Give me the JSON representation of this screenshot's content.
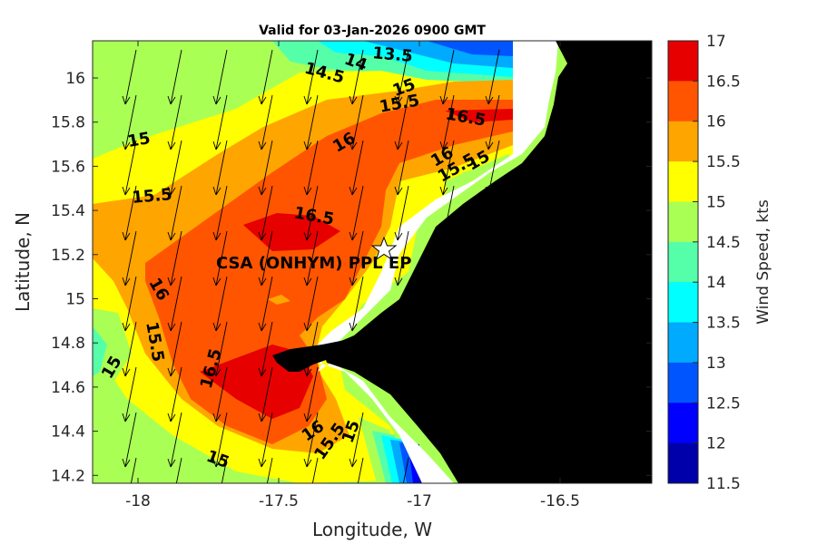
{
  "title": "Valid for 03-Jan-2026 0900 GMT",
  "xlabel": "Longitude, W",
  "ylabel": "Latitude, N",
  "colorbar_label": "Wind Speed, kts",
  "x_ticks": [
    "-18",
    "-17.5",
    "-17",
    "-16.5"
  ],
  "y_ticks": [
    "16",
    "15.8",
    "15.6",
    "15.4",
    "15.2",
    "15",
    "14.8",
    "14.6",
    "14.4",
    "14.2"
  ],
  "colorbar_ticks": [
    "17",
    "16.5",
    "16",
    "15.5",
    "15",
    "14.5",
    "14",
    "13.5",
    "13",
    "12.5",
    "12",
    "11.5"
  ],
  "colorbar_colors": [
    "#e60000",
    "#ff5500",
    "#ffa500",
    "#ffff00",
    "#aaff55",
    "#55ffaa",
    "#00ffff",
    "#00aaff",
    "#0055ff",
    "#0000ff",
    "#0000aa"
  ],
  "station_label": "CSA (ONHYM) PPL EP",
  "contour_labels": [
    "13.5",
    "14",
    "14.5",
    "15",
    "15.5",
    "16.5",
    "15",
    "16",
    "16",
    "15.5",
    "15",
    "15.5",
    "16.5",
    "16",
    "15.5",
    "15",
    "16.5",
    "16",
    "15.5",
    "15",
    "15"
  ],
  "colors": {
    "land": "#000000",
    "band_17": "#e60000",
    "band_16_5": "#ff5500",
    "band_16": "#ffa500",
    "band_15_5": "#ffff00",
    "band_15": "#aaff55",
    "band_14_5": "#55ffaa",
    "band_14": "#00ffff",
    "band_13_5": "#00aaff",
    "band_13": "#0055ff",
    "band_12_5": "#0000ff"
  }
}
